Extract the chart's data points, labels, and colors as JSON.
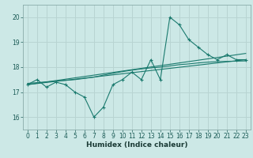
{
  "xlabel": "Humidex (Indice chaleur)",
  "bg_color": "#cce8e6",
  "grid_color": "#b8d4d2",
  "line_color": "#1a7a6e",
  "ylim": [
    15.5,
    20.5
  ],
  "xlim": [
    -0.5,
    23.5
  ],
  "yticks": [
    16,
    17,
    18,
    19,
    20
  ],
  "xticks": [
    0,
    1,
    2,
    3,
    4,
    5,
    6,
    7,
    8,
    9,
    10,
    11,
    12,
    13,
    14,
    15,
    16,
    17,
    18,
    19,
    20,
    21,
    22,
    23
  ],
  "main_data_x": [
    0,
    1,
    2,
    3,
    4,
    5,
    6,
    7,
    8,
    9,
    10,
    11,
    12,
    13,
    14,
    15,
    16,
    17,
    18,
    19,
    20,
    21,
    22,
    23
  ],
  "main_data_y": [
    17.3,
    17.5,
    17.2,
    17.4,
    17.3,
    17.0,
    16.8,
    16.0,
    16.4,
    17.3,
    17.5,
    17.8,
    17.5,
    18.3,
    17.5,
    20.0,
    19.7,
    19.1,
    18.8,
    18.5,
    18.3,
    18.5,
    18.3,
    18.3
  ],
  "trend1_x": [
    0,
    23
  ],
  "trend1_y": [
    17.3,
    18.3
  ],
  "trend2_x": [
    0,
    23
  ],
  "trend2_y": [
    17.3,
    18.55
  ],
  "smooth_x": [
    0,
    1,
    2,
    3,
    4,
    5,
    6,
    7,
    8,
    9,
    10,
    11,
    12,
    13,
    14,
    15,
    16,
    17,
    18,
    19,
    20,
    21,
    22,
    23
  ],
  "smooth_y": [
    17.35,
    17.38,
    17.41,
    17.44,
    17.47,
    17.5,
    17.55,
    17.6,
    17.68,
    17.75,
    17.82,
    17.88,
    17.93,
    17.97,
    18.0,
    18.05,
    18.1,
    18.13,
    18.17,
    18.2,
    18.22,
    18.23,
    18.24,
    18.25
  ]
}
